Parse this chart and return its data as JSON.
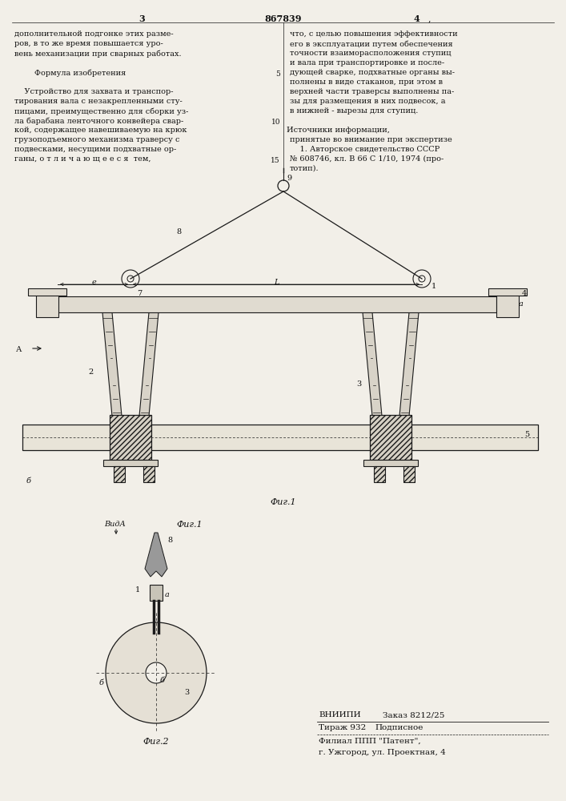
{
  "bg_color": "#f2efe8",
  "line_color": "#1a1a1a",
  "text_color": "#111111",
  "left_col_lines": [
    "дополнительной подгонке этих разме-",
    "ров, в то же время повышается уро-",
    "вень механизации при сварных работах.",
    "",
    "Формула изобретения",
    "",
    "    Устройство для захвата и транспор-",
    "тирования вала с незакрепленными сту-",
    "пицами, преимущественно для сборки уз-",
    "ла барабана ленточного конвейера свар-",
    "кой, содержащее навешиваемую на крюк",
    "грузоподъемного механизма траверсу с",
    "подвесками, несущими подхватные ор-",
    "ганы, о т л и ч а ю щ е е с я  тем,"
  ],
  "right_col_lines": [
    "что, с целью повышения эффективности",
    "его в эксплуатации путем обеспечения",
    "точности взаиморасположения ступиц",
    "и вала при транспортировке и после-",
    "дующей сварке, подхватные органы вы-",
    "полнены в виде стаканов, при этом в",
    "верхней части траверсы выполнены па-",
    "зы для размещения в них подвесок, а",
    "в нижней - вырезы для ступиц.",
    "",
    "    Источники информации,",
    "принятые во внимание при экспертизе",
    "    1. Авторское свидетельство СССР",
    "№ 608746, кл. В 66 С 1/10, 1974 (про-",
    "тотип)."
  ]
}
